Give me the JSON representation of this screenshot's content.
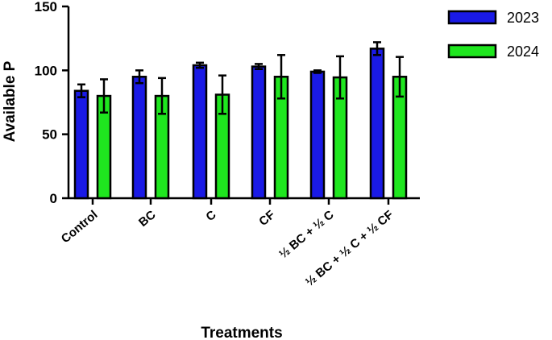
{
  "chart_data": {
    "type": "bar",
    "title": "",
    "xlabel": "Treatments",
    "ylabel": "Available P",
    "ylim": [
      0,
      150
    ],
    "yticks": [
      0,
      50,
      100,
      150
    ],
    "categories": [
      "Control",
      "BC",
      "C",
      "CF",
      "½ BC + ½ C",
      "½ BC + ½ C + ½ CF"
    ],
    "series": [
      {
        "name": "2023",
        "color": "#1a1ae6",
        "values": [
          84,
          95,
          104,
          103,
          99,
          117
        ],
        "errors": [
          5,
          5,
          2,
          2,
          1,
          5
        ]
      },
      {
        "name": "2024",
        "color": "#1fe61f",
        "values": [
          80,
          80,
          81,
          95,
          94.5,
          95
        ],
        "errors": [
          13,
          14,
          15,
          17,
          16.5,
          15.5
        ]
      }
    ],
    "legend_position": "top-right",
    "grid": false
  }
}
